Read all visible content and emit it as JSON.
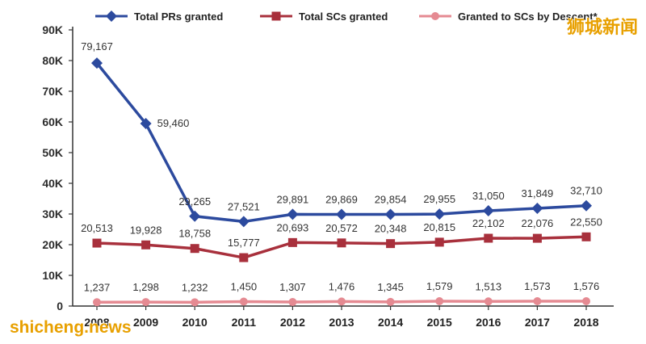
{
  "chart_data": {
    "type": "line",
    "categories": [
      "2008",
      "2009",
      "2010",
      "2011",
      "2012",
      "2013",
      "2014",
      "2015",
      "2016",
      "2017",
      "2018"
    ],
    "ylim": [
      0,
      90000
    ],
    "yticks": [
      {
        "value": 0,
        "label": "0"
      },
      {
        "value": 10000,
        "label": "10K"
      },
      {
        "value": 20000,
        "label": "20K"
      },
      {
        "value": 30000,
        "label": "30K"
      },
      {
        "value": 40000,
        "label": "40K"
      },
      {
        "value": 50000,
        "label": "50K"
      },
      {
        "value": 60000,
        "label": "60K"
      },
      {
        "value": 70000,
        "label": "70K"
      },
      {
        "value": 80000,
        "label": "80K"
      },
      {
        "value": 90000,
        "label": "90K"
      }
    ],
    "grid": false,
    "legend_position": "top",
    "series": [
      {
        "name": "Total PRs granted",
        "color": "#2c4a9e",
        "marker": "diamond",
        "values": [
          79167,
          59460,
          29265,
          27521,
          29891,
          29869,
          29854,
          29955,
          31050,
          31849,
          32710
        ],
        "labels": [
          "79,167",
          "59,460",
          "29,265",
          "27,521",
          "29,891",
          "29,869",
          "29,854",
          "29,955",
          "31,050",
          "31,849",
          "32,710"
        ]
      },
      {
        "name": "Total SCs granted",
        "color": "#a8303c",
        "marker": "square",
        "values": [
          20513,
          19928,
          18758,
          15777,
          20693,
          20572,
          20348,
          20815,
          22102,
          22076,
          22550
        ],
        "labels": [
          "20,513",
          "19,928",
          "18,758",
          "15,777",
          "20,693",
          "20,572",
          "20,348",
          "20,815",
          "22,102",
          "22,076",
          "22,550"
        ]
      },
      {
        "name": "Granted to SCs by Descent*",
        "color": "#e58a92",
        "marker": "circle",
        "values": [
          1237,
          1298,
          1232,
          1450,
          1307,
          1476,
          1345,
          1579,
          1513,
          1573,
          1576
        ],
        "labels": [
          "1,237",
          "1,298",
          "1,232",
          "1,450",
          "1,307",
          "1,476",
          "1,345",
          "1,579",
          "1,513",
          "1,573",
          "1,576"
        ]
      }
    ]
  },
  "watermarks": {
    "cn": "狮城新闻",
    "en": "shicheng.news"
  }
}
